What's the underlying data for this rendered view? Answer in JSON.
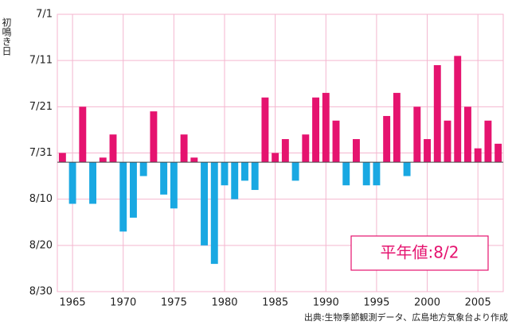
{
  "chart_data": {
    "type": "bar",
    "y_label": "初鳴き日",
    "source": "出典:生物季節観測データ、広島地方気象台より作成",
    "annotation": "平年値:8/2",
    "baseline": 32,
    "above_color": "#e5136f",
    "below_color": "#19a8e2",
    "grid_color": "#f4b6cf",
    "x": [
      1964,
      1965,
      1966,
      1967,
      1968,
      1969,
      1970,
      1971,
      1972,
      1973,
      1974,
      1975,
      1976,
      1977,
      1978,
      1979,
      1980,
      1981,
      1982,
      1983,
      1984,
      1985,
      1986,
      1987,
      1988,
      1989,
      1990,
      1991,
      1992,
      1993,
      1994,
      1995,
      1996,
      1997,
      1998,
      1999,
      2000,
      2001,
      2002,
      2003,
      2004,
      2005,
      2006,
      2007
    ],
    "values": [
      30,
      41,
      20,
      41,
      31,
      26,
      47,
      44,
      35,
      21,
      39,
      42,
      26,
      31,
      50,
      54,
      37,
      40,
      36,
      38,
      18,
      30,
      27,
      36,
      26,
      18,
      17,
      23,
      37,
      27,
      37,
      37,
      22,
      17,
      35,
      20,
      27,
      11,
      23,
      9,
      20,
      29,
      23,
      28
    ],
    "xlim": [
      1963.5,
      2007.5
    ],
    "xticks": [
      1965,
      1970,
      1975,
      1980,
      1985,
      1990,
      1995,
      2000,
      2005
    ],
    "ylim": [
      60,
      0
    ],
    "yticks": [
      {
        "value": 0,
        "label": "7/1"
      },
      {
        "value": 10,
        "label": "7/11"
      },
      {
        "value": 20,
        "label": "7/21"
      },
      {
        "value": 30,
        "label": "7/31"
      },
      {
        "value": 40,
        "label": "8/10"
      },
      {
        "value": 50,
        "label": "8/20"
      },
      {
        "value": 60,
        "label": "8/30"
      }
    ],
    "grid": true
  }
}
